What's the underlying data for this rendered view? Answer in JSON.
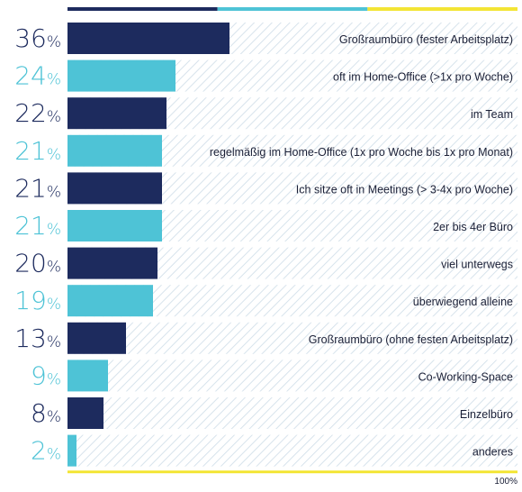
{
  "chart_data": {
    "type": "bar",
    "orientation": "horizontal",
    "categories": [
      "Großraumbüro (fester Arbeitsplatz)",
      "oft im Home-Office (>1x pro Woche)",
      "im Team",
      "regelmäßig im Home-Office  (1x pro Woche bis 1x pro Monat)",
      "Ich sitze oft in Meetings (> 3-4x pro Woche)",
      "2er bis 4er Büro",
      "viel unterwegs",
      "überwiegend alleine",
      "Großraumbüro (ohne festen Arbeitsplatz)",
      "Co-Working-Space",
      "Einzelbüro",
      "anderes"
    ],
    "values": [
      36,
      24,
      22,
      21,
      21,
      21,
      20,
      19,
      13,
      9,
      8,
      2
    ],
    "value_labels": [
      "36",
      "24",
      "22",
      "21",
      "21",
      "21",
      "20",
      "19",
      "13",
      "9",
      "8",
      "2"
    ],
    "unit": "%",
    "xlim": [
      0,
      100
    ],
    "axis_max_label": "100%",
    "legend": "none",
    "grid": false
  },
  "colors": {
    "dark": "#1d2b5e",
    "light": "#4ec3d6",
    "accent_yellow": "#f3e535",
    "hatch": "#d7e3ec"
  }
}
